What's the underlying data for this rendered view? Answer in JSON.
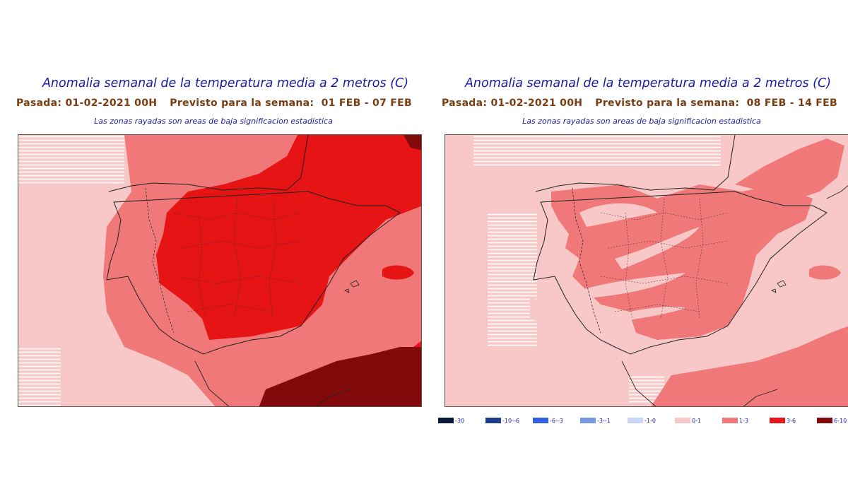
{
  "panels": [
    {
      "title": "Anomalia semanal de la temperatura media a 2 metros (C)",
      "run_label": "Pasada: 01-02-2021 00H",
      "forecast_label": "Previsto para la semana:",
      "forecast_range": "01 FEB - 07 FEB",
      "note": "Las zonas rayadas son areas de baja significacion estadistica"
    },
    {
      "title": "Anomalia semanal de la temperatura media a 2 metros (C)",
      "run_label": "Pasada: 01-02-2021 00H",
      "forecast_label": "Previsto para la semana:",
      "forecast_range": "08 FEB - 14 FEB",
      "note": "Las zonas rayadas son areas de baja significacion estadistica"
    }
  ],
  "legend": [
    {
      "label": "-30",
      "color": "#0a1a3c"
    },
    {
      "label": "-10--6",
      "color": "#1e3c8c"
    },
    {
      "label": "-6--3",
      "color": "#2f5fe0"
    },
    {
      "label": "-3--1",
      "color": "#7896e6"
    },
    {
      "label": "-1-0",
      "color": "#c8d7f5"
    },
    {
      "label": "0-1",
      "color": "#f8c8c8"
    },
    {
      "label": "1-3",
      "color": "#f07878"
    },
    {
      "label": "3-6",
      "color": "#e61414"
    },
    {
      "label": "6-10",
      "color": "#820a0a"
    }
  ],
  "colors": {
    "anomaly_0_1": "#f8c8c8",
    "anomaly_1_3": "#f07878",
    "anomaly_3_6": "#e61414",
    "anomaly_6_10": "#820a0a",
    "title_text": "#1a1aa6",
    "run_text": "#7a3c12"
  }
}
